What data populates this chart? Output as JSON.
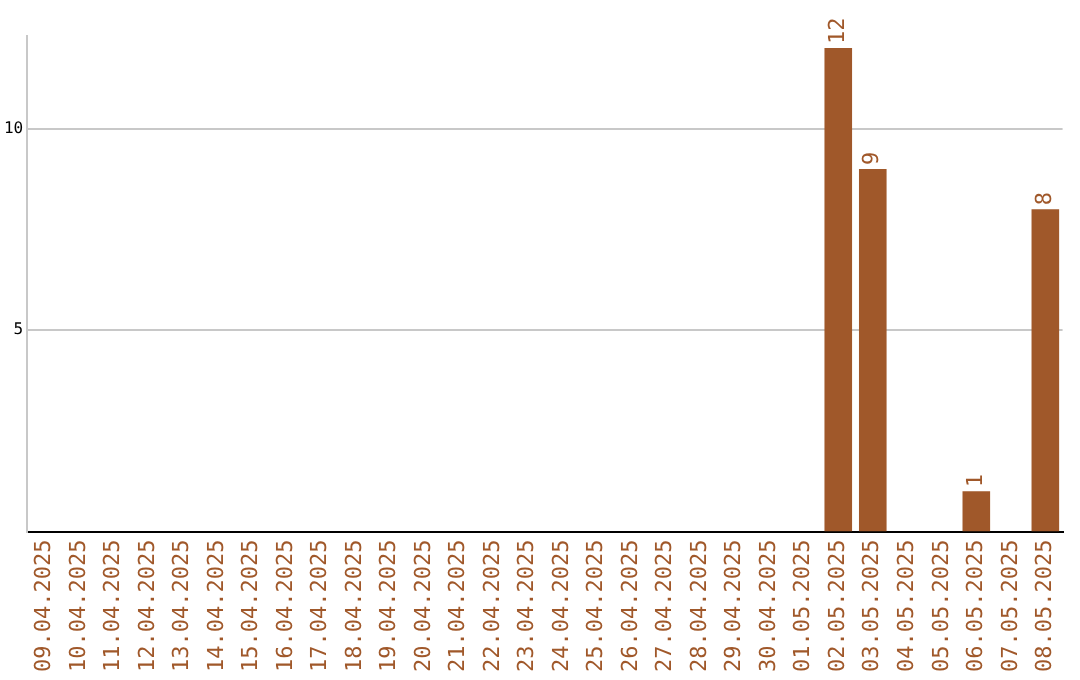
{
  "chart_data": {
    "type": "bar",
    "categories": [
      "09.04.2025",
      "10.04.2025",
      "11.04.2025",
      "12.04.2025",
      "13.04.2025",
      "14.04.2025",
      "15.04.2025",
      "16.04.2025",
      "17.04.2025",
      "18.04.2025",
      "19.04.2025",
      "20.04.2025",
      "21.04.2025",
      "22.04.2025",
      "23.04.2025",
      "24.04.2025",
      "25.04.2025",
      "26.04.2025",
      "27.04.2025",
      "28.04.2025",
      "29.04.2025",
      "30.04.2025",
      "01.05.2025",
      "02.05.2025",
      "03.05.2025",
      "04.05.2025",
      "05.05.2025",
      "06.05.2025",
      "07.05.2025",
      "08.05.2025"
    ],
    "values": [
      0,
      0,
      0,
      0,
      0,
      0,
      0,
      0,
      0,
      0,
      0,
      0,
      0,
      0,
      0,
      0,
      0,
      0,
      0,
      0,
      0,
      0,
      0,
      12,
      9,
      0,
      0,
      1,
      0,
      8
    ],
    "value_labels": [
      null,
      null,
      null,
      null,
      null,
      null,
      null,
      null,
      null,
      null,
      null,
      null,
      null,
      null,
      null,
      null,
      null,
      null,
      null,
      null,
      null,
      null,
      null,
      "12",
      "9",
      null,
      null,
      "1",
      null,
      "8"
    ],
    "color": "#a0582a",
    "ylim": [
      0,
      12.3
    ],
    "yticks": [
      5,
      10
    ],
    "grid": "y",
    "legend": false
  }
}
